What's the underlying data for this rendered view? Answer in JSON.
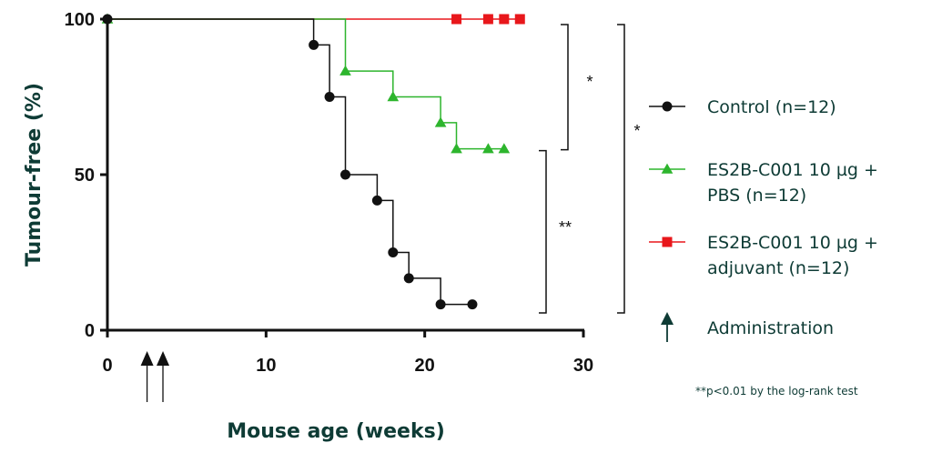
{
  "chart_data": {
    "type": "line",
    "step": true,
    "xlabel": "Mouse age (weeks)",
    "ylabel": "Tumour-free (%)",
    "xlim": [
      0,
      30
    ],
    "ylim": [
      0,
      100
    ],
    "x_ticks": [
      0,
      10,
      20,
      30
    ],
    "y_ticks": [
      0,
      50,
      100
    ],
    "grid": false,
    "legend_position": "right",
    "series": [
      {
        "name": "Control (n=12)",
        "color": "#111111",
        "marker": "circle",
        "steps": [
          [
            0,
            100
          ],
          [
            13,
            100
          ],
          [
            13,
            91.7
          ],
          [
            14,
            91.7
          ],
          [
            14,
            75
          ],
          [
            15,
            75
          ],
          [
            15,
            50
          ],
          [
            17,
            50
          ],
          [
            17,
            41.7
          ],
          [
            18,
            41.7
          ],
          [
            18,
            25
          ],
          [
            19,
            25
          ],
          [
            19,
            16.7
          ],
          [
            21,
            16.7
          ],
          [
            21,
            8.3
          ],
          [
            23,
            8.3
          ]
        ],
        "points": [
          [
            0,
            100
          ],
          [
            13,
            91.7
          ],
          [
            14,
            75
          ],
          [
            15,
            50
          ],
          [
            17,
            41.7
          ],
          [
            18,
            25
          ],
          [
            19,
            16.7
          ],
          [
            21,
            8.3
          ],
          [
            23,
            8.3
          ]
        ]
      },
      {
        "name": "ES2B-C001 10 µg + PBS (n=12)",
        "name_lines": [
          "ES2B-C001 10 µg +",
          "PBS (n=12)"
        ],
        "color": "#2db52d",
        "marker": "triangle",
        "steps": [
          [
            0,
            100
          ],
          [
            15,
            100
          ],
          [
            15,
            83.3
          ],
          [
            18,
            83.3
          ],
          [
            18,
            75
          ],
          [
            21,
            75
          ],
          [
            21,
            66.7
          ],
          [
            22,
            66.7
          ],
          [
            22,
            58.3
          ],
          [
            25,
            58.3
          ]
        ],
        "points": [
          [
            0,
            100
          ],
          [
            15,
            83.3
          ],
          [
            18,
            75
          ],
          [
            21,
            66.7
          ],
          [
            22,
            58.3
          ],
          [
            24,
            58.3
          ],
          [
            25,
            58.3
          ]
        ]
      },
      {
        "name": "ES2B-C001 10 µg + adjuvant (n=12)",
        "name_lines": [
          "ES2B-C001 10 µg +",
          "adjuvant (n=12)"
        ],
        "color": "#e8171b",
        "marker": "square",
        "steps": [
          [
            0,
            100
          ],
          [
            26,
            100
          ]
        ],
        "points": [
          [
            22,
            100
          ],
          [
            24,
            100
          ],
          [
            25,
            100
          ],
          [
            26,
            100
          ]
        ]
      }
    ],
    "administration": {
      "label": "Administration",
      "x": [
        2.5,
        3.5
      ],
      "color": "#0e3b35"
    },
    "significance": [
      {
        "label": "*",
        "from_y": 100,
        "to_y": 58.3
      },
      {
        "label": "**",
        "from_y": 58.3,
        "to_y": 5
      },
      {
        "label": "*",
        "from_y": 100,
        "to_y": 5
      }
    ],
    "footnote": "**p<0.01 by the log-rank test"
  }
}
